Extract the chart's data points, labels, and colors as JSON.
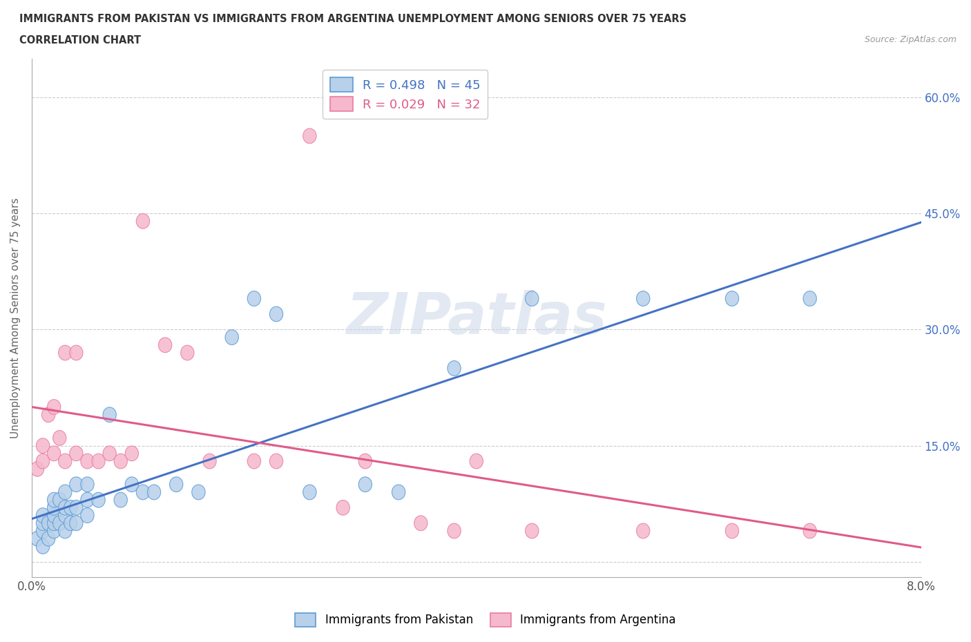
{
  "title_line1": "IMMIGRANTS FROM PAKISTAN VS IMMIGRANTS FROM ARGENTINA UNEMPLOYMENT AMONG SENIORS OVER 75 YEARS",
  "title_line2": "CORRELATION CHART",
  "source": "Source: ZipAtlas.com",
  "ylabel": "Unemployment Among Seniors over 75 years",
  "xlim": [
    0.0,
    0.08
  ],
  "ylim": [
    -0.02,
    0.65
  ],
  "yticks": [
    0.0,
    0.15,
    0.3,
    0.45,
    0.6
  ],
  "ytick_labels": [
    "",
    "15.0%",
    "30.0%",
    "45.0%",
    "60.0%"
  ],
  "xticks": [
    0.0,
    0.01,
    0.02,
    0.03,
    0.04,
    0.05,
    0.06,
    0.07,
    0.08
  ],
  "xtick_labels": [
    "0.0%",
    "",
    "",
    "",
    "",
    "",
    "",
    "",
    "8.0%"
  ],
  "pakistan_color": "#b8d0ea",
  "argentina_color": "#f5b8cc",
  "pakistan_edge_color": "#5b9bd5",
  "argentina_edge_color": "#e87da0",
  "pakistan_line_color": "#4472c4",
  "argentina_line_color": "#e05a8a",
  "legend_R_pakistan": "R = 0.498",
  "legend_N_pakistan": "N = 45",
  "legend_R_argentina": "R = 0.029",
  "legend_N_argentina": "N = 32",
  "pakistan_x": [
    0.0005,
    0.001,
    0.001,
    0.001,
    0.001,
    0.0015,
    0.0015,
    0.002,
    0.002,
    0.002,
    0.002,
    0.002,
    0.0025,
    0.0025,
    0.003,
    0.003,
    0.003,
    0.003,
    0.0035,
    0.0035,
    0.004,
    0.004,
    0.004,
    0.005,
    0.005,
    0.005,
    0.006,
    0.007,
    0.008,
    0.009,
    0.01,
    0.011,
    0.013,
    0.015,
    0.018,
    0.02,
    0.022,
    0.025,
    0.03,
    0.033,
    0.038,
    0.045,
    0.055,
    0.063,
    0.07
  ],
  "pakistan_y": [
    0.03,
    0.02,
    0.04,
    0.05,
    0.06,
    0.03,
    0.05,
    0.04,
    0.05,
    0.06,
    0.07,
    0.08,
    0.05,
    0.08,
    0.04,
    0.06,
    0.07,
    0.09,
    0.05,
    0.07,
    0.05,
    0.07,
    0.1,
    0.06,
    0.08,
    0.1,
    0.08,
    0.19,
    0.08,
    0.1,
    0.09,
    0.09,
    0.1,
    0.09,
    0.29,
    0.34,
    0.32,
    0.09,
    0.1,
    0.09,
    0.25,
    0.34,
    0.34,
    0.34,
    0.34
  ],
  "argentina_x": [
    0.0005,
    0.001,
    0.001,
    0.0015,
    0.002,
    0.002,
    0.0025,
    0.003,
    0.003,
    0.004,
    0.004,
    0.005,
    0.006,
    0.007,
    0.008,
    0.009,
    0.01,
    0.012,
    0.014,
    0.016,
    0.02,
    0.022,
    0.025,
    0.028,
    0.03,
    0.035,
    0.038,
    0.04,
    0.045,
    0.055,
    0.063,
    0.07
  ],
  "argentina_y": [
    0.12,
    0.13,
    0.15,
    0.19,
    0.14,
    0.2,
    0.16,
    0.13,
    0.27,
    0.14,
    0.27,
    0.13,
    0.13,
    0.14,
    0.13,
    0.14,
    0.44,
    0.28,
    0.27,
    0.13,
    0.13,
    0.13,
    0.55,
    0.07,
    0.13,
    0.05,
    0.04,
    0.13,
    0.04,
    0.04,
    0.04,
    0.04
  ],
  "background_color": "#ffffff",
  "grid_color": "#cccccc",
  "watermark": "ZIPatlas"
}
